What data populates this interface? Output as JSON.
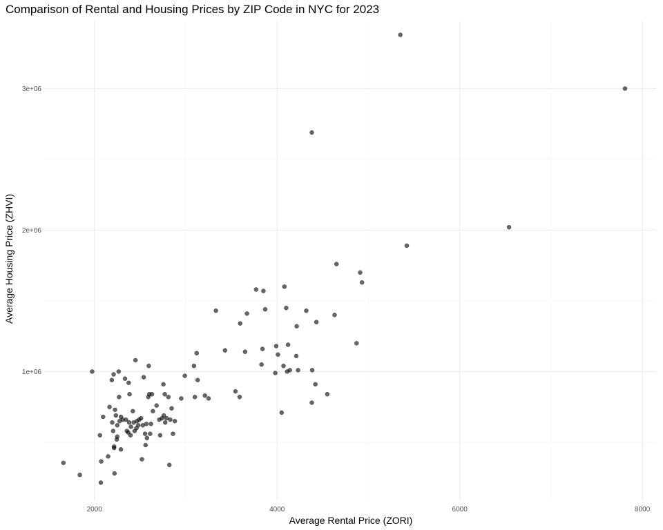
{
  "chart_data": {
    "type": "scatter",
    "title": "Comparison of Rental and Housing Prices by ZIP Code in NYC for 2023",
    "xlabel": "Average Rental Price (ZORI)",
    "ylabel": "Average Housing Price (ZHVI)",
    "xlim": [
      1450,
      8150
    ],
    "ylim": [
      90000,
      3480000
    ],
    "x_ticks": [
      2000,
      4000,
      6000,
      8000
    ],
    "x_tick_labels": [
      "2000",
      "4000",
      "6000",
      "8000"
    ],
    "x_minor": [
      3000,
      5000,
      7000
    ],
    "y_ticks": [
      1000000,
      2000000,
      3000000
    ],
    "y_tick_labels": [
      "1e+06",
      "2e+06",
      "3e+06"
    ],
    "y_minor": [
      500000,
      1500000,
      2500000
    ],
    "grid": true,
    "point_color": "#000000",
    "point_opacity": 0.6,
    "points": [
      [
        1660,
        355000
      ],
      [
        1840,
        270000
      ],
      [
        1975,
        1000000
      ],
      [
        2060,
        550000
      ],
      [
        2070,
        215000
      ],
      [
        2075,
        365000
      ],
      [
        2095,
        680000
      ],
      [
        2150,
        400000
      ],
      [
        2165,
        750000
      ],
      [
        2190,
        940000
      ],
      [
        2195,
        640000
      ],
      [
        2205,
        580000
      ],
      [
        2210,
        980000
      ],
      [
        2215,
        470000
      ],
      [
        2215,
        460000
      ],
      [
        2220,
        280000
      ],
      [
        2225,
        730000
      ],
      [
        2235,
        690000
      ],
      [
        2245,
        520000
      ],
      [
        2250,
        540000
      ],
      [
        2250,
        620000
      ],
      [
        2265,
        1000000
      ],
      [
        2270,
        820000
      ],
      [
        2275,
        650000
      ],
      [
        2290,
        450000
      ],
      [
        2290,
        680000
      ],
      [
        2310,
        660000
      ],
      [
        2335,
        950000
      ],
      [
        2345,
        660000
      ],
      [
        2355,
        580000
      ],
      [
        2370,
        570000
      ],
      [
        2375,
        920000
      ],
      [
        2380,
        640000
      ],
      [
        2385,
        840000
      ],
      [
        2395,
        550000
      ],
      [
        2400,
        610000
      ],
      [
        2420,
        720000
      ],
      [
        2430,
        640000
      ],
      [
        2440,
        580000
      ],
      [
        2450,
        1080000
      ],
      [
        2460,
        600000
      ],
      [
        2465,
        650000
      ],
      [
        2480,
        620000
      ],
      [
        2490,
        660000
      ],
      [
        2510,
        670000
      ],
      [
        2520,
        380000
      ],
      [
        2530,
        620000
      ],
      [
        2540,
        960000
      ],
      [
        2555,
        560000
      ],
      [
        2560,
        480000
      ],
      [
        2570,
        630000
      ],
      [
        2575,
        530000
      ],
      [
        2590,
        820000
      ],
      [
        2595,
        1040000
      ],
      [
        2600,
        840000
      ],
      [
        2610,
        560000
      ],
      [
        2620,
        630000
      ],
      [
        2630,
        840000
      ],
      [
        2640,
        720000
      ],
      [
        2680,
        760000
      ],
      [
        2710,
        660000
      ],
      [
        2720,
        550000
      ],
      [
        2740,
        670000
      ],
      [
        2755,
        910000
      ],
      [
        2760,
        690000
      ],
      [
        2770,
        840000
      ],
      [
        2775,
        640000
      ],
      [
        2790,
        670000
      ],
      [
        2810,
        820000
      ],
      [
        2820,
        340000
      ],
      [
        2830,
        660000
      ],
      [
        2845,
        740000
      ],
      [
        2860,
        560000
      ],
      [
        2880,
        650000
      ],
      [
        2950,
        810000
      ],
      [
        2990,
        970000
      ],
      [
        3090,
        1040000
      ],
      [
        3100,
        820000
      ],
      [
        3120,
        1130000
      ],
      [
        3130,
        940000
      ],
      [
        3210,
        830000
      ],
      [
        3250,
        810000
      ],
      [
        3330,
        1430000
      ],
      [
        3430,
        1150000
      ],
      [
        3545,
        860000
      ],
      [
        3590,
        820000
      ],
      [
        3595,
        1340000
      ],
      [
        3650,
        1140000
      ],
      [
        3670,
        1410000
      ],
      [
        3770,
        1580000
      ],
      [
        3830,
        1050000
      ],
      [
        3840,
        1160000
      ],
      [
        3850,
        1570000
      ],
      [
        3870,
        1440000
      ],
      [
        3980,
        990000
      ],
      [
        3990,
        1180000
      ],
      [
        4010,
        1120000
      ],
      [
        4050,
        710000
      ],
      [
        4070,
        1040000
      ],
      [
        4080,
        1600000
      ],
      [
        4100,
        1450000
      ],
      [
        4110,
        1000000
      ],
      [
        4120,
        1190000
      ],
      [
        4140,
        1010000
      ],
      [
        4210,
        1110000
      ],
      [
        4215,
        1320000
      ],
      [
        4230,
        1010000
      ],
      [
        4320,
        1430000
      ],
      [
        4380,
        2690000
      ],
      [
        4380,
        780000
      ],
      [
        4385,
        1010000
      ],
      [
        4420,
        910000
      ],
      [
        4430,
        1350000
      ],
      [
        4550,
        840000
      ],
      [
        4630,
        1400000
      ],
      [
        4650,
        1760000
      ],
      [
        4870,
        1200000
      ],
      [
        4910,
        1700000
      ],
      [
        4930,
        1630000
      ],
      [
        5350,
        3380000
      ],
      [
        5420,
        1890000
      ],
      [
        6540,
        2020000
      ],
      [
        7810,
        3000000
      ]
    ]
  }
}
